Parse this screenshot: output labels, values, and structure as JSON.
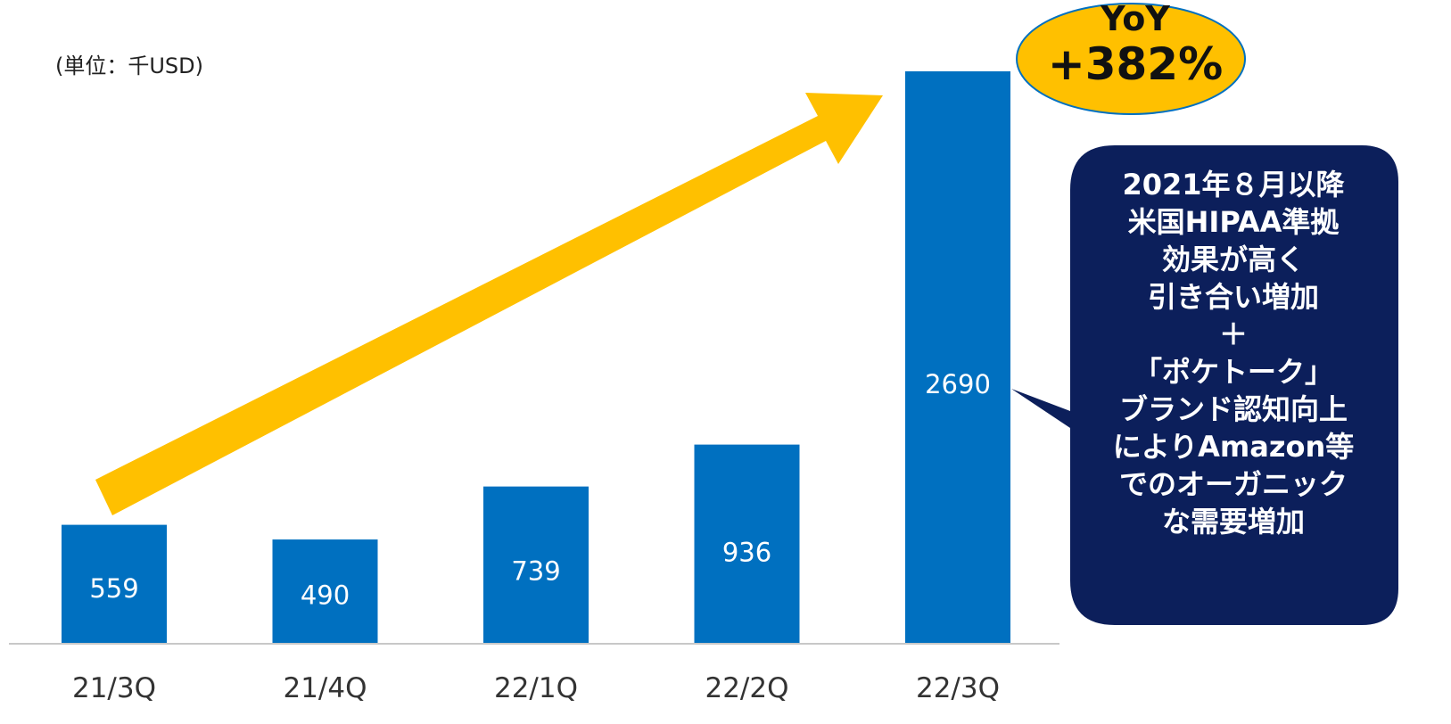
{
  "unit_label": "(単位：千USD)",
  "yoy_badge": {
    "line1": "YoY",
    "line2": "+382%"
  },
  "callout": {
    "lines": [
      "2021年８月以降",
      "米国HIPAA準拠",
      "効果が高く",
      "引き合い増加",
      "＋",
      "「ポケトーク」",
      "ブランド認知向上",
      "によりAmazon等",
      "でのオーガニック",
      "な需要増加"
    ]
  },
  "colors": {
    "bar": "#0070C0",
    "bar_label": "#ffffff",
    "arrow": "#FFC000",
    "badge_fill": "#FFC000",
    "badge_stroke": "#0070C0",
    "callout_fill": "#0C1F5B",
    "axis": "#C8C8C8",
    "tick_text": "#333333"
  },
  "chart_data": {
    "type": "bar",
    "categories": [
      "21/3Q",
      "21/4Q",
      "22/1Q",
      "22/2Q",
      "22/3Q"
    ],
    "values": [
      559,
      490,
      739,
      936,
      2690
    ],
    "value_labels": [
      "559",
      "490",
      "739",
      "936",
      "2690"
    ],
    "ylim": [
      0,
      2690
    ],
    "grid": false,
    "legend": "none",
    "ylabel": "(単位：千USD)"
  }
}
